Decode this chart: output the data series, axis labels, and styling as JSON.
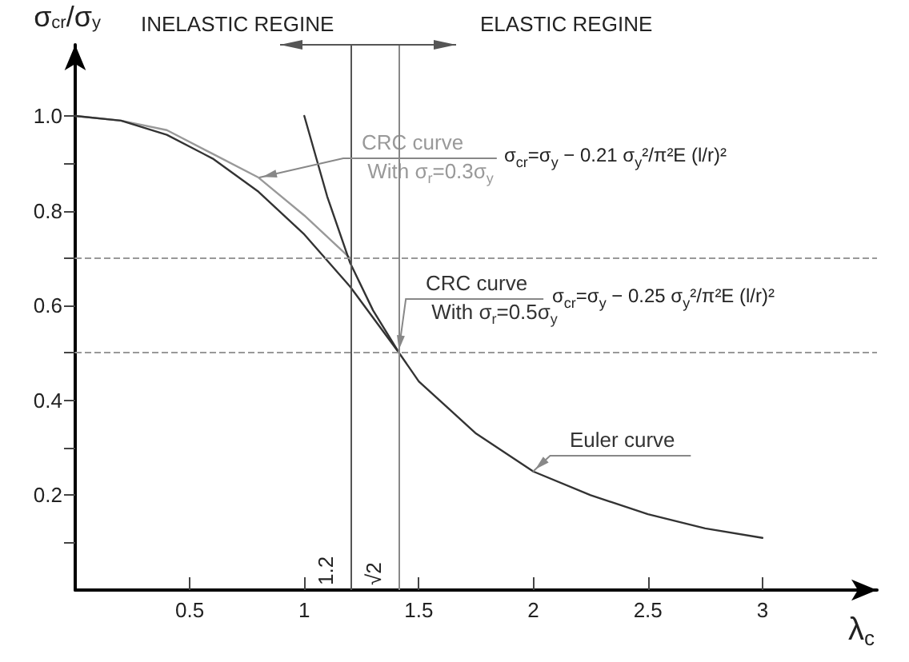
{
  "chart_data": {
    "type": "line",
    "xlabel": "λ$_{c}$",
    "ylabel": "σ$_{cr}$/σ$_{y}$",
    "annotations": [
      "INELASTIC REGINE",
      "ELASTIC REGINE",
      {
        "text": "σ$_{cr}$=σ$_{y}$ − 0.21 σ$_{y}$²/π²E (l/r)²",
        "x": 0.8,
        "y": 0.87
      },
      {
        "text": "σ$_{cr}$=σ$_{y}$ − 0.25 σ$_{y}$²/π²E (l/r)²",
        "x": 1.414,
        "y": 0.5
      }
    ],
    "series": [
      {
        "name": "CRC curve\nWith σ$_{r}$=0.3σ$_{y}$",
        "color": "#999999",
        "x": [
          0,
          0.2,
          0.4,
          0.6,
          0.8,
          1.0,
          1.2
        ],
        "values": [
          1.0,
          0.99,
          0.97,
          0.92,
          0.87,
          0.79,
          0.7
        ]
      },
      {
        "name": "CRC curve\nWith σ$_{r}$=0.5σ$_{y}$",
        "color": "#333333",
        "x": [
          0,
          0.2,
          0.4,
          0.6,
          0.8,
          1.0,
          1.2,
          1.414
        ],
        "values": [
          1.0,
          0.99,
          0.96,
          0.91,
          0.84,
          0.75,
          0.64,
          0.5
        ]
      },
      {
        "name": "Euler curve",
        "color": "#333333",
        "x": [
          1.0,
          1.1,
          1.2,
          1.3,
          1.414,
          1.5,
          1.75,
          2.0,
          2.25,
          2.5,
          2.75,
          3.0
        ],
        "values": [
          1.0,
          0.83,
          0.69,
          0.59,
          0.5,
          0.44,
          0.33,
          0.25,
          0.2,
          0.16,
          0.13,
          0.11
        ]
      }
    ],
    "xlim": [
      0,
      3.5
    ],
    "ylim": [
      0,
      1.15
    ],
    "xticks": [
      0.5,
      1.0,
      1.5,
      2.0,
      2.5,
      3.0
    ],
    "yticks": [
      {
        "value": 0.1,
        "label": null
      },
      {
        "value": 0.2,
        "label": "0.2"
      },
      {
        "value": 0.3,
        "label": null
      },
      {
        "value": 0.4,
        "label": "0.4"
      },
      {
        "value": 0.5,
        "label": null
      },
      {
        "value": 0.6,
        "label": "0.6"
      },
      {
        "value": 0.7,
        "label": null
      },
      {
        "value": 0.8,
        "label": "0.8"
      },
      {
        "value": 0.9,
        "label": null
      },
      {
        "value": 1.0,
        "label": "1.0"
      }
    ],
    "ref_lines": [
      {
        "axis": "x",
        "value": 1.2,
        "label": "1.2",
        "color": "#555555"
      },
      {
        "axis": "x",
        "value": 1.414,
        "label": "√2",
        "color": "#888888"
      },
      {
        "axis": "y",
        "value": 0.7,
        "label": null,
        "color": "#999999",
        "line_style": "dashed"
      },
      {
        "axis": "y",
        "value": 0.5,
        "label": null,
        "color": "#999999",
        "line_style": "dashed"
      }
    ],
    "grid": false,
    "legend": false,
    "marker": "none",
    "line_style": "solid"
  }
}
